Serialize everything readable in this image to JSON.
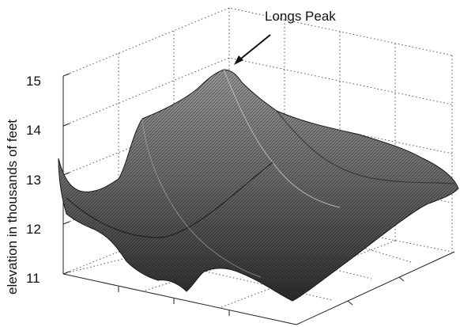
{
  "chart_data": {
    "type": "surface",
    "title": "",
    "zlabel": "elevation in thousands of feet",
    "zlim": [
      11,
      15
    ],
    "z_ticks": [
      11,
      12,
      13,
      14,
      15
    ],
    "z_tick_labels": [
      "11",
      "12",
      "13",
      "14",
      "15"
    ],
    "annotation": {
      "text": "Longs Peak",
      "target_elevation": 15.2
    },
    "grid": true,
    "colormap": "gray"
  }
}
